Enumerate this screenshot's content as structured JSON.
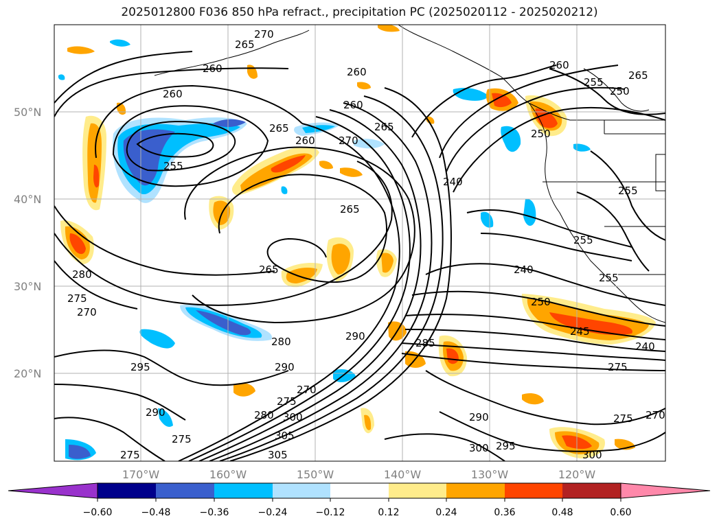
{
  "title": "2025012800 F036 850 hPa refract., precipitation PC (2025020112 - 2025020212)",
  "lat_labels": [
    "50°N",
    "40°N",
    "30°N",
    "20°N"
  ],
  "lon_labels": [
    "170°W",
    "160°W",
    "150°W",
    "140°W",
    "130°W",
    "120°W"
  ],
  "colorbar": {
    "ticks": [
      "−0.60",
      "−0.48",
      "−0.36",
      "−0.24",
      "−0.12",
      "0.12",
      "0.24",
      "0.36",
      "0.48",
      "0.60"
    ],
    "colors": [
      "#9932cc",
      "#00008b",
      "#3a5fcd",
      "#00bfff",
      "#b0e2ff",
      "#ffffff",
      "#ffec8b",
      "#ffa500",
      "#ff4500",
      "#b22222",
      "#ff88aa"
    ]
  },
  "contour_labels": [
    {
      "text": "270"
    },
    {
      "text": "265"
    },
    {
      "text": "260"
    },
    {
      "text": "260"
    },
    {
      "text": "260"
    },
    {
      "text": "260"
    },
    {
      "text": "255"
    },
    {
      "text": "265"
    },
    {
      "text": "260"
    },
    {
      "text": "270"
    },
    {
      "text": "265"
    },
    {
      "text": "265"
    },
    {
      "text": "265"
    },
    {
      "text": "280"
    },
    {
      "text": "275"
    },
    {
      "text": "270"
    },
    {
      "text": "290"
    },
    {
      "text": "280"
    },
    {
      "text": "290"
    },
    {
      "text": "295"
    },
    {
      "text": "285"
    },
    {
      "text": "290"
    },
    {
      "text": "270"
    },
    {
      "text": "275"
    },
    {
      "text": "280"
    },
    {
      "text": "300"
    },
    {
      "text": "305"
    },
    {
      "text": "305"
    },
    {
      "text": "275"
    },
    {
      "text": "275"
    },
    {
      "text": "290"
    },
    {
      "text": "300"
    },
    {
      "text": "295"
    },
    {
      "text": "240"
    },
    {
      "text": "240"
    },
    {
      "text": "250"
    },
    {
      "text": "245"
    },
    {
      "text": "240"
    },
    {
      "text": "275"
    },
    {
      "text": "275"
    },
    {
      "text": "270"
    },
    {
      "text": "300"
    },
    {
      "text": "255"
    },
    {
      "text": "255"
    },
    {
      "text": "250"
    },
    {
      "text": "265"
    },
    {
      "text": "255"
    },
    {
      "text": "255"
    },
    {
      "text": "260"
    },
    {
      "text": "250"
    }
  ]
}
